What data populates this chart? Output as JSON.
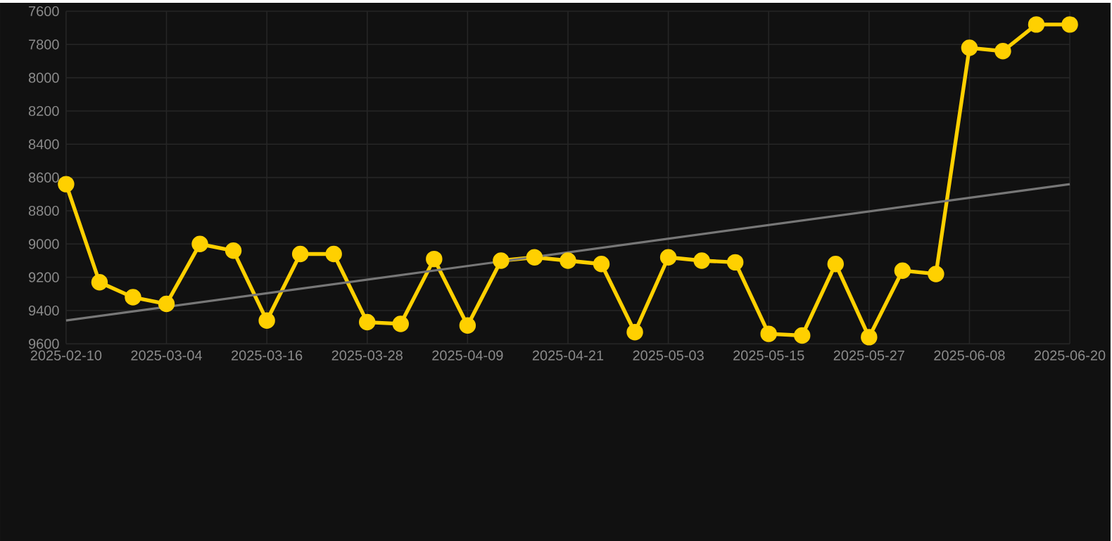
{
  "chart_data": {
    "type": "line",
    "categories": [
      "2025-02-10",
      null,
      null,
      "2025-03-04",
      null,
      null,
      "2025-03-16",
      null,
      null,
      "2025-03-28",
      null,
      null,
      "2025-04-09",
      null,
      null,
      "2025-04-21",
      null,
      null,
      "2025-05-03",
      null,
      null,
      "2025-05-15",
      null,
      null,
      "2025-05-27",
      null,
      null,
      "2025-06-08",
      null,
      null,
      "2025-06-20"
    ],
    "series": [
      {
        "color": "#ffd000",
        "marker": "circle",
        "values": [
          8640,
          9230,
          9320,
          9360,
          9000,
          9040,
          9460,
          9060,
          9060,
          9470,
          9480,
          9090,
          9490,
          9100,
          9080,
          9100,
          9120,
          9530,
          9080,
          9100,
          9110,
          9540,
          9550,
          9120,
          9560,
          9160,
          9180,
          7820,
          7840,
          7680,
          7680
        ]
      },
      {
        "type": "line",
        "color": "#777777",
        "marker": "none",
        "values": [
          9460,
          null,
          null,
          null,
          null,
          null,
          null,
          null,
          null,
          null,
          null,
          null,
          null,
          null,
          null,
          null,
          null,
          null,
          null,
          null,
          null,
          null,
          null,
          null,
          null,
          null,
          null,
          null,
          null,
          null,
          8640
        ]
      }
    ],
    "ylim": [
      9600,
      7600
    ],
    "yticks": [
      7600,
      7800,
      8000,
      8200,
      8400,
      8600,
      8800,
      9000,
      9200,
      9400,
      9600
    ],
    "grid": true
  }
}
